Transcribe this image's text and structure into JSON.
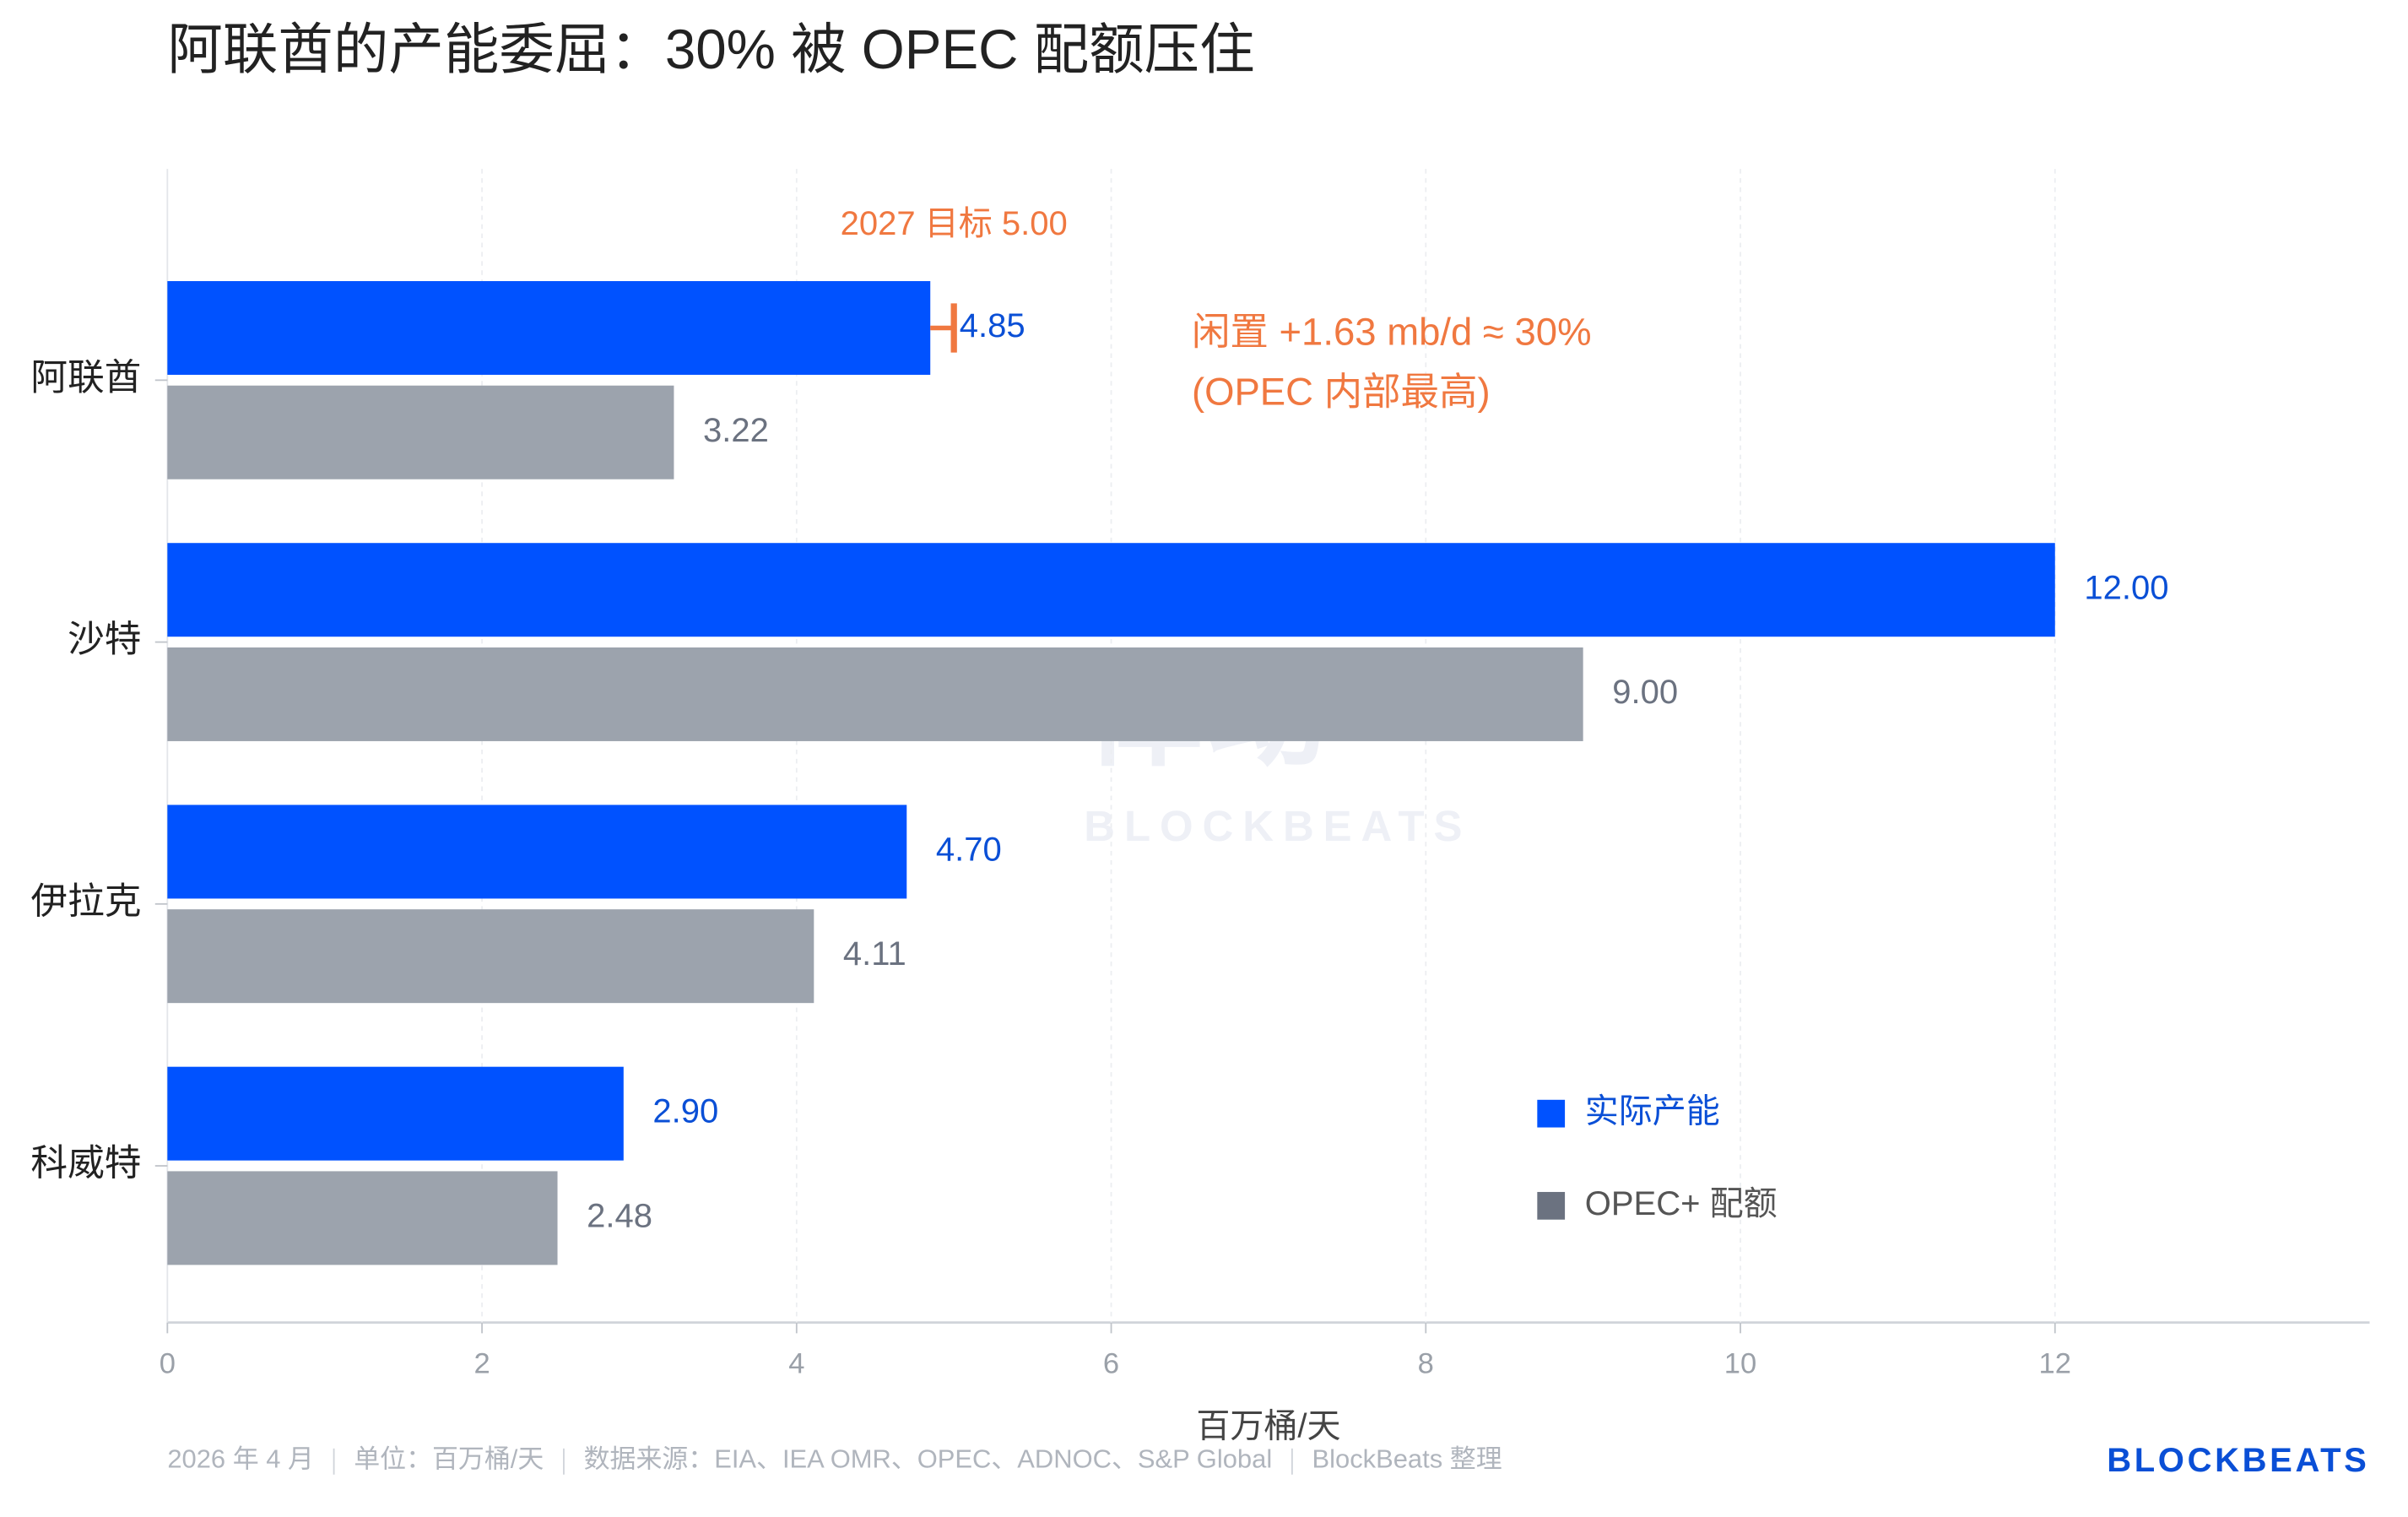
{
  "chart_data": {
    "type": "bar",
    "orientation": "horizontal",
    "title": "阿联酋的产能委屈：30% 被 OPEC 配额压住",
    "categories": [
      "阿联酋",
      "沙特",
      "伊拉克",
      "科威特"
    ],
    "series": [
      {
        "name": "实际产能",
        "color": "#0052ff",
        "label_color": "#0a4fd6",
        "values": [
          4.85,
          12.0,
          4.7,
          2.9
        ],
        "value_labels": [
          "4.85",
          "12.00",
          "4.70",
          "2.90"
        ]
      },
      {
        "name": "OPEC+ 配额",
        "color": "#9ca3ad",
        "label_color": "#6b7280",
        "values": [
          3.22,
          9.0,
          4.11,
          2.48
        ],
        "value_labels": [
          "3.22",
          "9.00",
          "4.11",
          "2.48"
        ]
      }
    ],
    "xlim": [
      0,
      14
    ],
    "xticks": [
      0,
      2,
      4,
      6,
      8,
      10,
      12
    ],
    "xlabel": "百万桶/天",
    "grid": true,
    "legend_position": "lower right",
    "annotations": [
      {
        "text": "2027 目标 5.00",
        "value": 5,
        "category_index": 0,
        "color": "#f07840"
      },
      {
        "lines": [
          "闲置 +1.63 mb/d ≈ 30%",
          "(OPEC 内部最高)"
        ],
        "color": "#f07840"
      }
    ],
    "footer": [
      "2026 年 4 月",
      "单位：百万桶/天",
      "数据来源：EIA、IEA OMR、OPEC、ADNOC、S&P Global",
      "BlockBeats 整理"
    ],
    "brand": "BLOCKBEATS",
    "watermark": [
      "律动",
      "BLOCKBEATS"
    ]
  }
}
